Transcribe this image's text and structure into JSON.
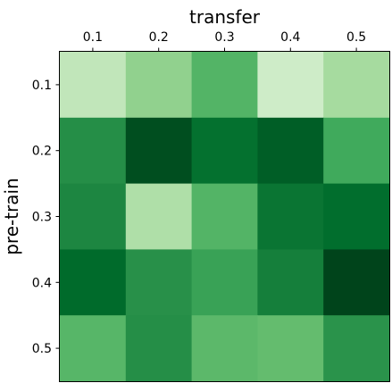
{
  "chart_data": {
    "type": "heatmap",
    "title": "",
    "xlabel": "transfer",
    "ylabel": "pre-train",
    "x_categories": [
      "0.1",
      "0.2",
      "0.3",
      "0.4",
      "0.5"
    ],
    "y_categories": [
      "0.1",
      "0.2",
      "0.3",
      "0.4",
      "0.5"
    ],
    "colormap": "Greens",
    "xaxis_position": "top",
    "grid": false,
    "colorbar": false,
    "values": [
      [
        0.27,
        0.42,
        0.58,
        0.22,
        0.36
      ],
      [
        0.74,
        0.97,
        0.86,
        0.92,
        0.63
      ],
      [
        0.77,
        0.33,
        0.58,
        0.84,
        0.87
      ],
      [
        0.88,
        0.73,
        0.66,
        0.8,
        1.0
      ],
      [
        0.57,
        0.74,
        0.56,
        0.54,
        0.72
      ]
    ]
  }
}
